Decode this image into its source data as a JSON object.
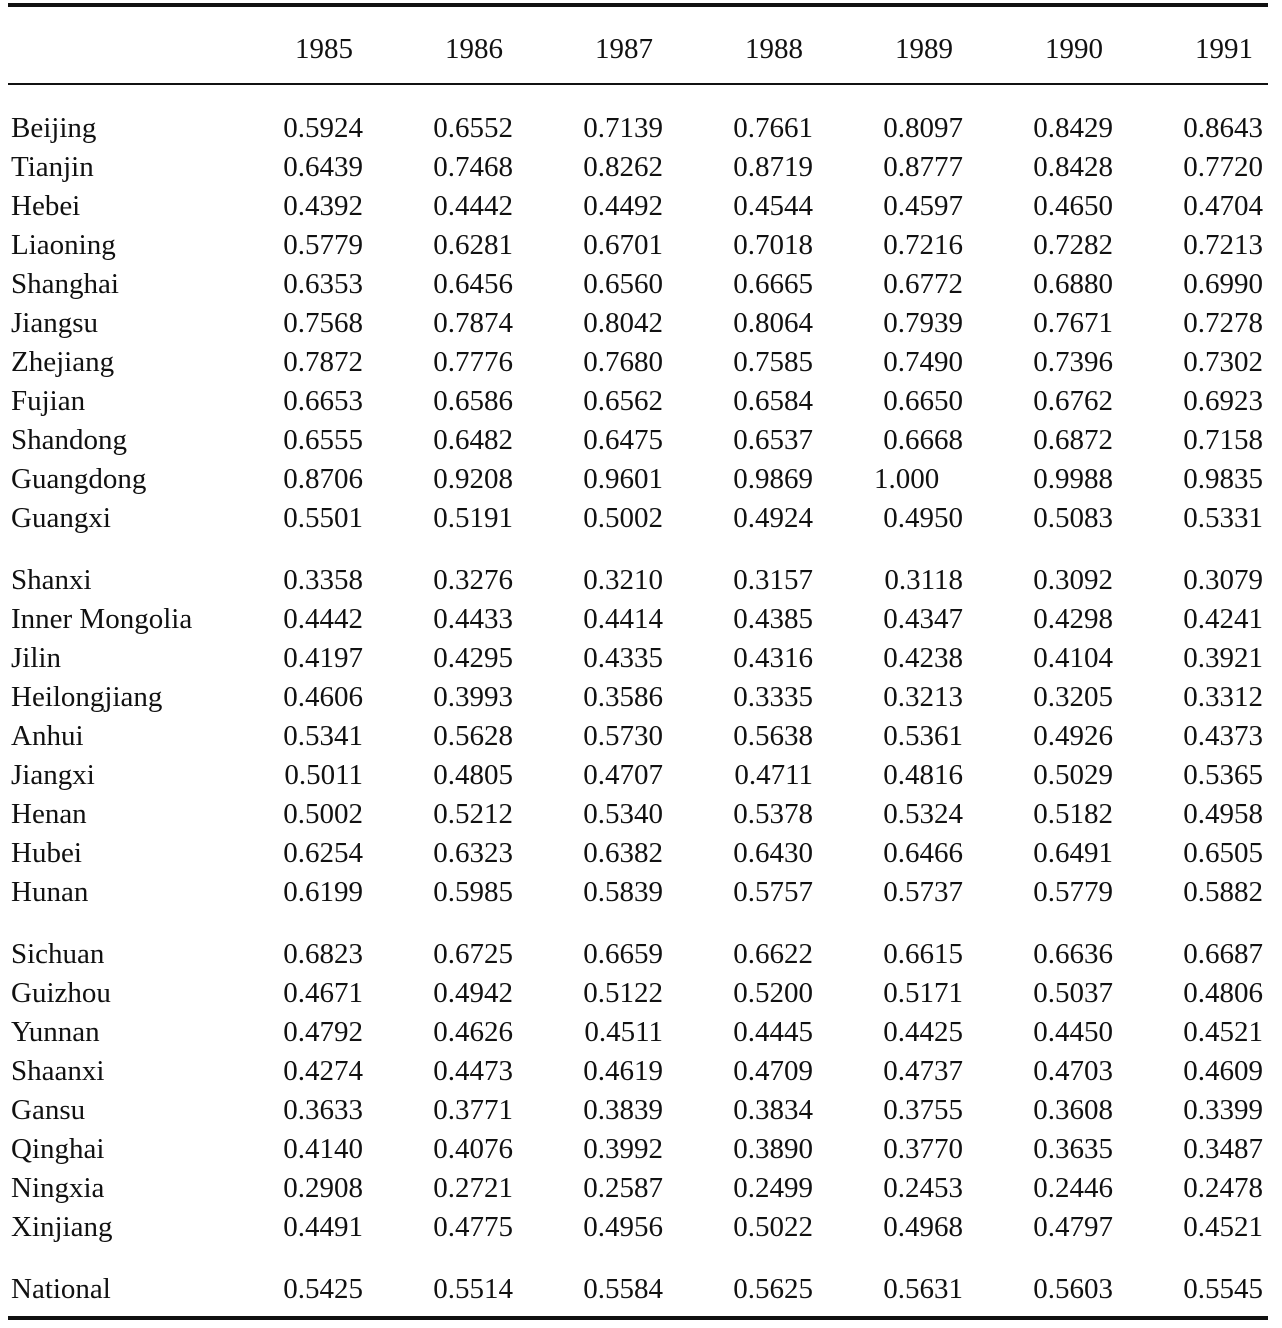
{
  "years": [
    "1985",
    "1986",
    "1987",
    "1988",
    "1989",
    "1990",
    "1991"
  ],
  "rows": [
    {
      "name": "Beijing",
      "values": [
        "0.5924",
        "0.6552",
        "0.7139",
        "0.7661",
        "0.8097",
        "0.8429",
        "0.8643"
      ]
    },
    {
      "name": "Tianjin",
      "values": [
        "0.6439",
        "0.7468",
        "0.8262",
        "0.8719",
        "0.8777",
        "0.8428",
        "0.7720"
      ]
    },
    {
      "name": "Hebei",
      "values": [
        "0.4392",
        "0.4442",
        "0.4492",
        "0.4544",
        "0.4597",
        "0.4650",
        "0.4704"
      ]
    },
    {
      "name": "Liaoning",
      "values": [
        "0.5779",
        "0.6281",
        "0.6701",
        "0.7018",
        "0.7216",
        "0.7282",
        "0.7213"
      ]
    },
    {
      "name": "Shanghai",
      "values": [
        "0.6353",
        "0.6456",
        "0.6560",
        "0.6665",
        "0.6772",
        "0.6880",
        "0.6990"
      ]
    },
    {
      "name": "Jiangsu",
      "values": [
        "0.7568",
        "0.7874",
        "0.8042",
        "0.8064",
        "0.7939",
        "0.7671",
        "0.7278"
      ]
    },
    {
      "name": "Zhejiang",
      "values": [
        "0.7872",
        "0.7776",
        "0.7680",
        "0.7585",
        "0.7490",
        "0.7396",
        "0.7302"
      ]
    },
    {
      "name": "Fujian",
      "values": [
        "0.6653",
        "0.6586",
        "0.6562",
        "0.6584",
        "0.6650",
        "0.6762",
        "0.6923"
      ]
    },
    {
      "name": "Shandong",
      "values": [
        "0.6555",
        "0.6482",
        "0.6475",
        "0.6537",
        "0.6668",
        "0.6872",
        "0.7158"
      ]
    },
    {
      "name": "Guangdong",
      "values": [
        "0.8706",
        "0.9208",
        "0.9601",
        "0.9869",
        "1.000",
        "0.9988",
        "0.9835"
      ]
    },
    {
      "name": "Guangxi",
      "values": [
        "0.5501",
        "0.5191",
        "0.5002",
        "0.4924",
        "0.4950",
        "0.5083",
        "0.5331"
      ]
    },
    {
      "name": "Shanxi",
      "values": [
        "0.3358",
        "0.3276",
        "0.3210",
        "0.3157",
        "0.3118",
        "0.3092",
        "0.3079"
      ]
    },
    {
      "name": "Inner Mongolia",
      "values": [
        "0.4442",
        "0.4433",
        "0.4414",
        "0.4385",
        "0.4347",
        "0.4298",
        "0.4241"
      ]
    },
    {
      "name": "Jilin",
      "values": [
        "0.4197",
        "0.4295",
        "0.4335",
        "0.4316",
        "0.4238",
        "0.4104",
        "0.3921"
      ]
    },
    {
      "name": "Heilongjiang",
      "values": [
        "0.4606",
        "0.3993",
        "0.3586",
        "0.3335",
        "0.3213",
        "0.3205",
        "0.3312"
      ]
    },
    {
      "name": "Anhui",
      "values": [
        "0.5341",
        "0.5628",
        "0.5730",
        "0.5638",
        "0.5361",
        "0.4926",
        "0.4373"
      ]
    },
    {
      "name": "Jiangxi",
      "values": [
        "0.5011",
        "0.4805",
        "0.4707",
        "0.4711",
        "0.4816",
        "0.5029",
        "0.5365"
      ]
    },
    {
      "name": "Henan",
      "values": [
        "0.5002",
        "0.5212",
        "0.5340",
        "0.5378",
        "0.5324",
        "0.5182",
        "0.4958"
      ]
    },
    {
      "name": "Hubei",
      "values": [
        "0.6254",
        "0.6323",
        "0.6382",
        "0.6430",
        "0.6466",
        "0.6491",
        "0.6505"
      ]
    },
    {
      "name": "Hunan",
      "values": [
        "0.6199",
        "0.5985",
        "0.5839",
        "0.5757",
        "0.5737",
        "0.5779",
        "0.5882"
      ]
    },
    {
      "name": "Sichuan",
      "values": [
        "0.6823",
        "0.6725",
        "0.6659",
        "0.6622",
        "0.6615",
        "0.6636",
        "0.6687"
      ]
    },
    {
      "name": "Guizhou",
      "values": [
        "0.4671",
        "0.4942",
        "0.5122",
        "0.5200",
        "0.5171",
        "0.5037",
        "0.4806"
      ]
    },
    {
      "name": "Yunnan",
      "values": [
        "0.4792",
        "0.4626",
        "0.4511",
        "0.4445",
        "0.4425",
        "0.4450",
        "0.4521"
      ]
    },
    {
      "name": "Shaanxi",
      "values": [
        "0.4274",
        "0.4473",
        "0.4619",
        "0.4709",
        "0.4737",
        "0.4703",
        "0.4609"
      ]
    },
    {
      "name": "Gansu",
      "values": [
        "0.3633",
        "0.3771",
        "0.3839",
        "0.3834",
        "0.3755",
        "0.3608",
        "0.3399"
      ]
    },
    {
      "name": "Qinghai",
      "values": [
        "0.4140",
        "0.4076",
        "0.3992",
        "0.3890",
        "0.3770",
        "0.3635",
        "0.3487"
      ]
    },
    {
      "name": "Ningxia",
      "values": [
        "0.2908",
        "0.2721",
        "0.2587",
        "0.2499",
        "0.2453",
        "0.2446",
        "0.2478"
      ]
    },
    {
      "name": "Xinjiang",
      "values": [
        "0.4491",
        "0.4775",
        "0.4956",
        "0.5022",
        "0.4968",
        "0.4797",
        "0.4521"
      ]
    },
    {
      "name": "National",
      "values": [
        "0.5425",
        "0.5514",
        "0.5584",
        "0.5625",
        "0.5631",
        "0.5603",
        "0.5545"
      ]
    }
  ]
}
